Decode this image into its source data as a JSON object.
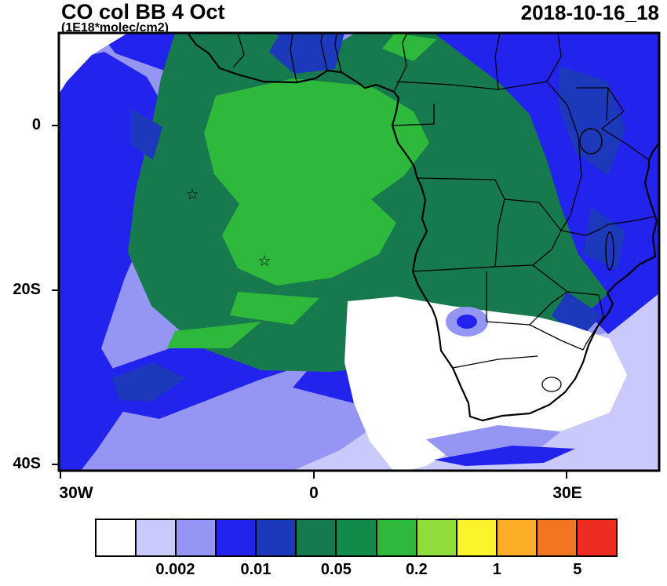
{
  "header": {
    "title": "CO col BB 4 Oct",
    "subtitle": "(1E18*molec/cm2)",
    "datetime": "2018-10-16_18"
  },
  "axes": {
    "y_ticks": [
      {
        "label": "0"
      },
      {
        "label": "20S"
      },
      {
        "label": "40S"
      }
    ],
    "x_ticks": [
      {
        "label": "30W"
      },
      {
        "label": "0"
      },
      {
        "label": "30E"
      }
    ]
  },
  "map": {
    "marker_glyph": "☆"
  },
  "colorbar": {
    "colors": [
      "#ffffff",
      "#c9c9fb",
      "#9595f4",
      "#2323ee",
      "#1c38bb",
      "#17794e",
      "#128a4a",
      "#2eb83c",
      "#90dc3a",
      "#fbf42c",
      "#fdae29",
      "#f4751f",
      "#ee2c22"
    ],
    "tick_labels": [
      {
        "label": "0.002",
        "boundary": 2
      },
      {
        "label": "0.01",
        "boundary": 4
      },
      {
        "label": "0.05",
        "boundary": 6
      },
      {
        "label": "0.2",
        "boundary": 8
      },
      {
        "label": "1",
        "boundary": 10
      },
      {
        "label": "5",
        "boundary": 12
      }
    ]
  },
  "chart_data": {
    "type": "heatmap",
    "title": "CO col BB 4 Oct",
    "units": "1E18*molec/cm2",
    "datetime": "2018-10-16_18",
    "x_tick_labels": [
      "30W",
      "0",
      "30E"
    ],
    "y_tick_labels": [
      "0",
      "20S",
      "40S"
    ],
    "extent": {
      "lon_min": -30,
      "lon_max": 41,
      "lat_min": -41,
      "lat_max": 11
    },
    "labeled_levels": [
      0.002,
      0.01,
      0.05,
      0.2,
      1,
      5
    ],
    "palette": [
      "#ffffff",
      "#c9c9fb",
      "#9595f4",
      "#2323ee",
      "#1c38bb",
      "#17794e",
      "#128a4a",
      "#2eb83c",
      "#90dc3a",
      "#fbf42c",
      "#fdae29",
      "#f4751f",
      "#ee2c22"
    ],
    "markers": [
      {
        "type": "star",
        "lon": -14.4,
        "lat": -8.1
      },
      {
        "type": "star",
        "lon": -5.9,
        "lat": -15.9
      }
    ],
    "legend_position": "bottom",
    "grid": false,
    "description": "Filled contour map of CO column from biomass burning over Africa and the South Atlantic. Highest values (greens) cover equatorial Africa and the Gulf of Guinea outflow, decreasing outward through dark and light blues; near-zero (white) region over South Africa and the southern ocean."
  }
}
